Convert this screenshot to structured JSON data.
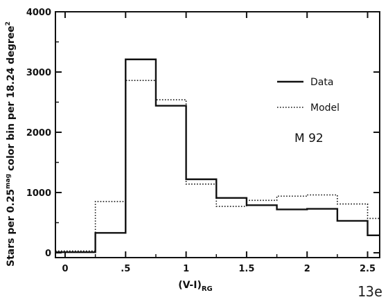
{
  "chart_data": {
    "type": "line",
    "step": true,
    "title": "",
    "xlabel": "(V-I)",
    "xlabel_subscript": "RG",
    "ylabel": "Stars per 0.25",
    "ylabel_superscript": "mag",
    "ylabel_rest": "color bin per 18.24 degree",
    "ylabel_sup2": "2",
    "xlim": [
      -0.08,
      2.6
    ],
    "ylim": [
      -80,
      4000
    ],
    "xticks": [
      0,
      0.5,
      1,
      1.5,
      2,
      2.5
    ],
    "xtick_labels": [
      "0",
      ".5",
      "1",
      "1.5",
      "2",
      "2.5"
    ],
    "yticks": [
      0,
      1000,
      2000,
      3000,
      4000
    ],
    "ytick_labels": [
      "0",
      "1000",
      "2000",
      "3000",
      "4000"
    ],
    "bin_edges": [
      -0.08,
      0.25,
      0.5,
      0.75,
      1.0,
      1.25,
      1.5,
      1.75,
      2.0,
      2.25,
      2.5,
      2.6
    ],
    "series": [
      {
        "name": "Data",
        "style": "solid",
        "values": [
          10,
          330,
          3210,
          2440,
          1220,
          910,
          790,
          720,
          730,
          530,
          290
        ]
      },
      {
        "name": "Model",
        "style": "dotted",
        "values": [
          30,
          850,
          2860,
          2540,
          1140,
          770,
          870,
          940,
          960,
          810,
          570
        ]
      }
    ],
    "legend": {
      "position": "right"
    },
    "annotation": "M 92",
    "grid": false
  },
  "panel_tag": "13e"
}
